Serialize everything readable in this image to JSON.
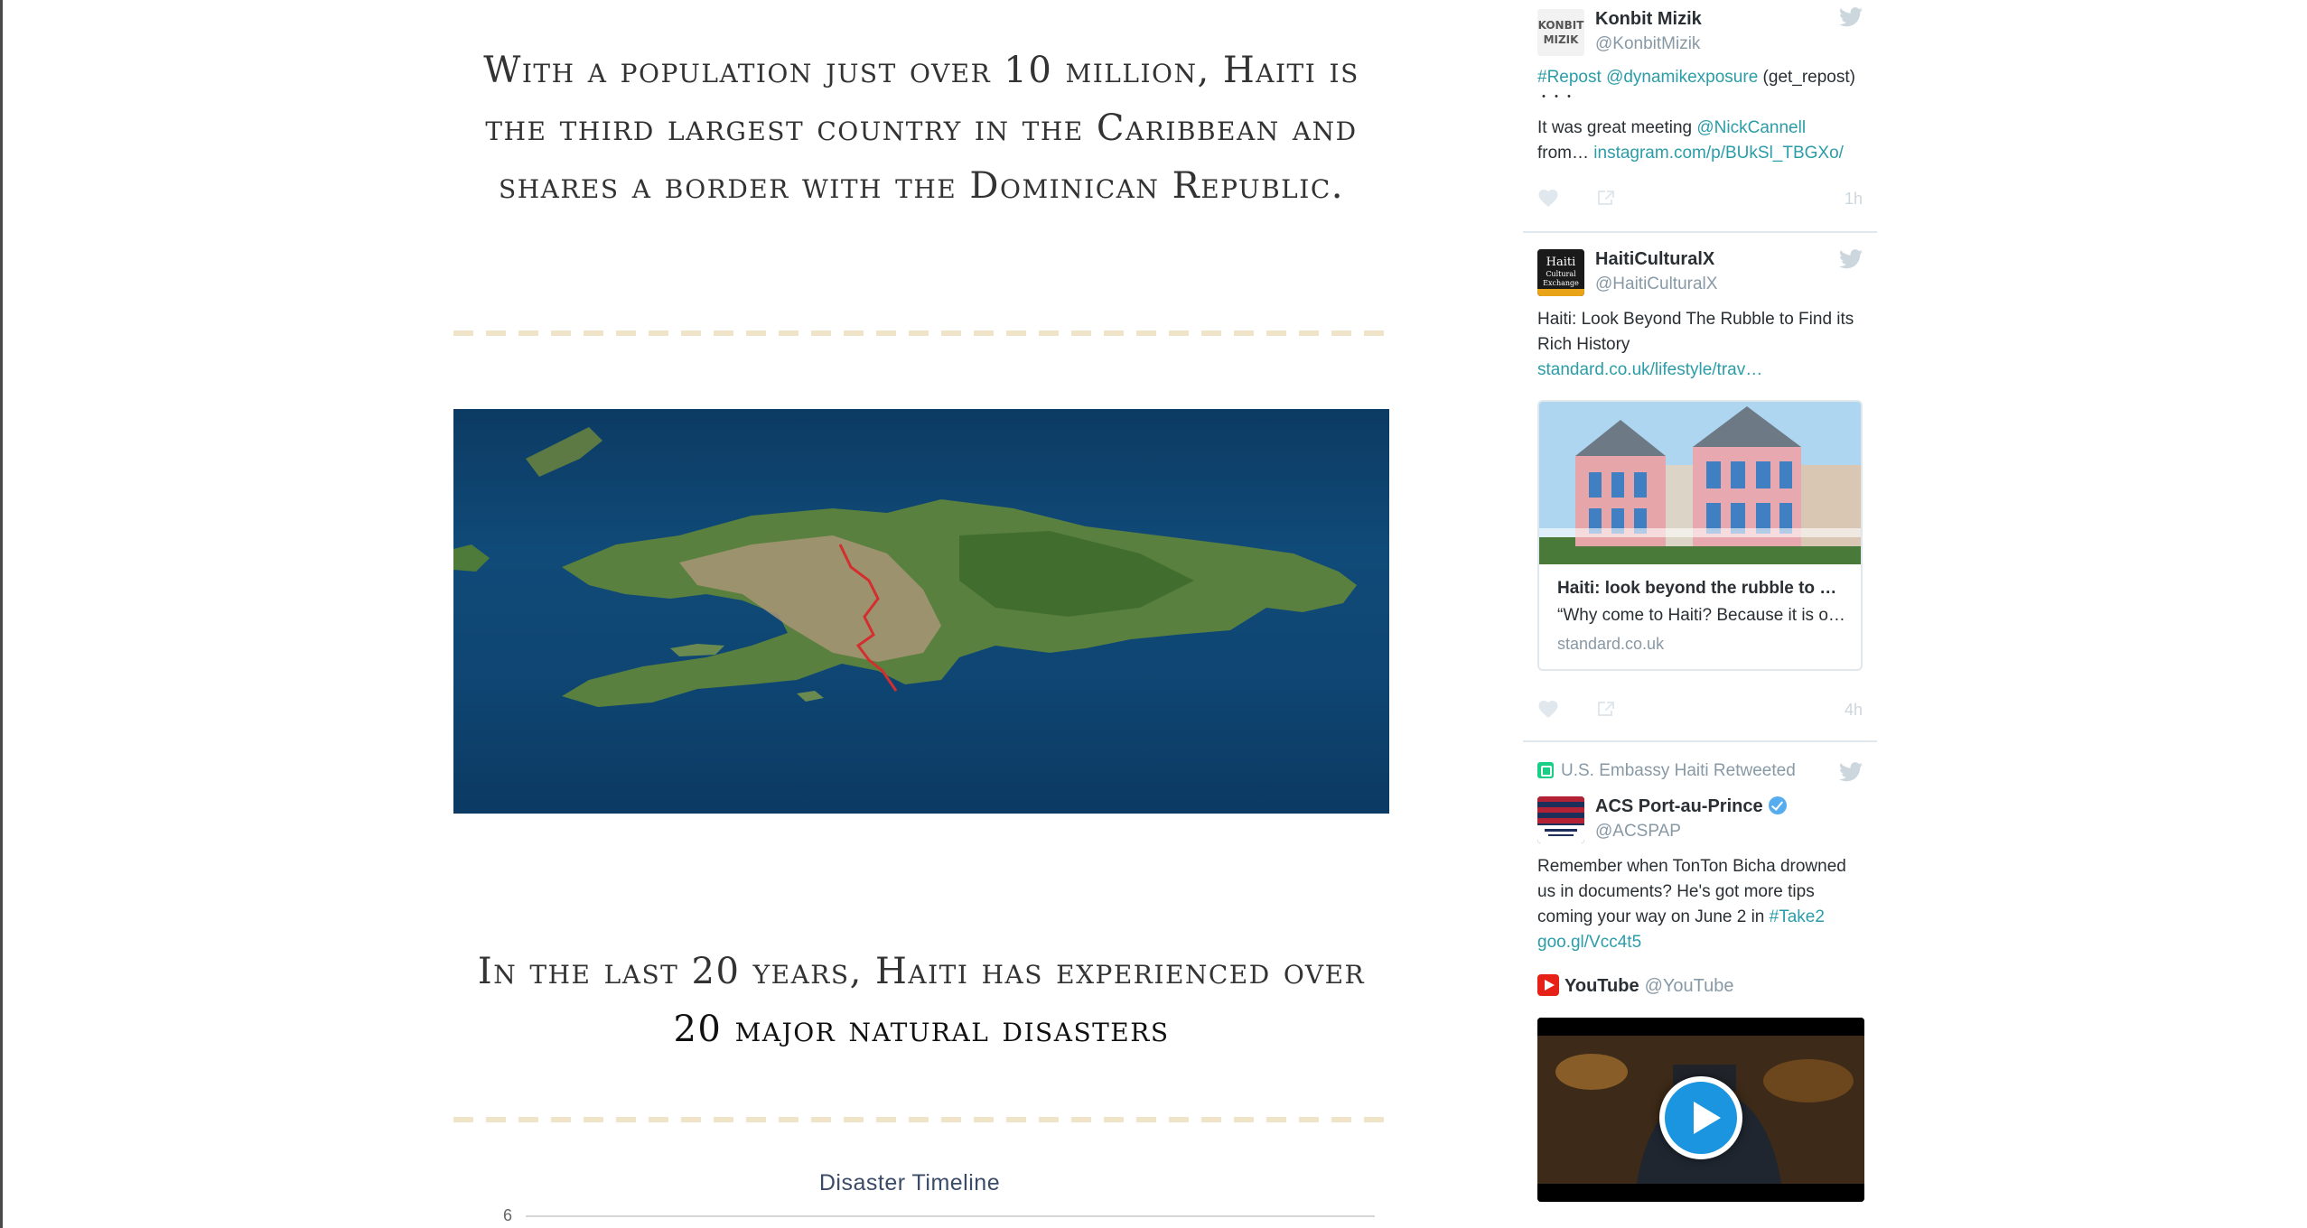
{
  "main": {
    "headline1": "With a population just over 10 million, Haiti is the third largest country in the Caribbean and shares a border with the Dominican Republic.",
    "headline2_lead": "In the last 20 years, Haiti has experienced over",
    "headline2_strong": "20 major natural disasters",
    "chart_title": "Disaster Timeline",
    "axis_tick_top": "6"
  },
  "timeline": {
    "tweets": [
      {
        "name": "Konbit Mizik",
        "handle": "@KonbitMizik",
        "avatar_text": "KONBIT MIZIK",
        "line1_hashtag": "#Repost",
        "line1_mention": "@dynamikexposure",
        "line1_rest": " (get_repost)",
        "ellipsis": "・・・",
        "line2_lead": "It was great meeting ",
        "line2_mention": "@NickCannell",
        "line3_lead": "from… ",
        "line3_link": "instagram.com/p/BUkSl_TBGXo/",
        "time": "1h"
      },
      {
        "name": "HaitiCulturalX",
        "handle": "@HaitiCulturalX",
        "avatar_text": "Haiti Cultural Exchange",
        "text": "Haiti: Look Beyond The Rubble to Find its Rich History",
        "link": "standard.co.uk/lifestyle/trav…",
        "card_title": "Haiti: look beyond the rubble to …",
        "card_desc": "“Why come to Haiti? Because it is o…",
        "card_domain": "standard.co.uk",
        "time": "4h"
      },
      {
        "retweeted_by": "U.S. Embassy Haiti Retweeted",
        "name": "ACS Port-au-Prince",
        "handle": "@ACSPAP",
        "text_lead": "Remember when TonTon Bicha drowned us in documents? He's got more tips coming your way on June 2 in ",
        "hashtag": "#Take2",
        "link": "goo.gl/Vcc4t5",
        "embed_name": "YouTube",
        "embed_handle": "@YouTube"
      }
    ]
  }
}
